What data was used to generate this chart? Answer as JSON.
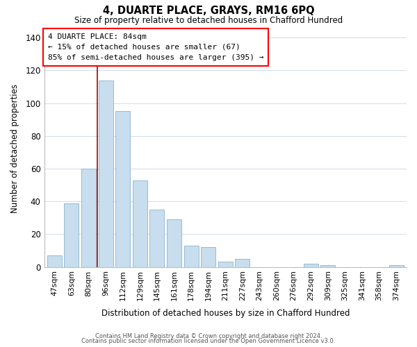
{
  "title": "4, DUARTE PLACE, GRAYS, RM16 6PQ",
  "subtitle": "Size of property relative to detached houses in Chafford Hundred",
  "xlabel": "Distribution of detached houses by size in Chafford Hundred",
  "ylabel": "Number of detached properties",
  "bar_color": "#c8dded",
  "bar_edge_color": "#8ab4cc",
  "categories": [
    "47sqm",
    "63sqm",
    "80sqm",
    "96sqm",
    "112sqm",
    "129sqm",
    "145sqm",
    "161sqm",
    "178sqm",
    "194sqm",
    "211sqm",
    "227sqm",
    "243sqm",
    "260sqm",
    "276sqm",
    "292sqm",
    "309sqm",
    "325sqm",
    "341sqm",
    "358sqm",
    "374sqm"
  ],
  "values": [
    7,
    39,
    60,
    114,
    95,
    53,
    35,
    29,
    13,
    12,
    3,
    5,
    0,
    0,
    0,
    2,
    1,
    0,
    0,
    0,
    1
  ],
  "ylim": [
    0,
    145
  ],
  "yticks": [
    0,
    20,
    40,
    60,
    80,
    100,
    120,
    140
  ],
  "red_line_x": 2.5,
  "annotation_box_text": "4 DUARTE PLACE: 84sqm\n← 15% of detached houses are smaller (67)\n85% of semi-detached houses are larger (395) →",
  "footer_line1": "Contains HM Land Registry data © Crown copyright and database right 2024.",
  "footer_line2": "Contains public sector information licensed under the Open Government Licence v3.0.",
  "background_color": "#ffffff",
  "grid_color": "#d0dce8"
}
